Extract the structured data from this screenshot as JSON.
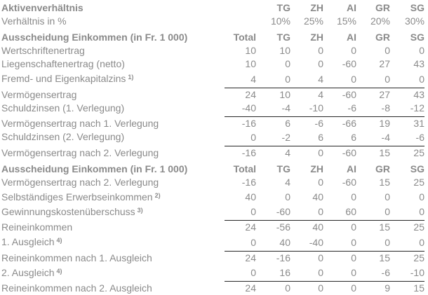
{
  "colors": {
    "text": "#8a8a8a",
    "rule_line": "#262626",
    "background": "#ffffff"
  },
  "table": {
    "column_keys": [
      "total",
      "tg",
      "zh",
      "ai",
      "gr",
      "sg"
    ],
    "rows": [
      {
        "label": "Aktivenverhältnis",
        "bold": true,
        "values": [
          "",
          "TG",
          "ZH",
          "AI",
          "GR",
          "SG"
        ]
      },
      {
        "label": "Verhältnis in %",
        "values": [
          "",
          "10%",
          "25%",
          "15%",
          "20%",
          "30%"
        ]
      },
      {
        "label": "Ausscheidung Einkommen (in Fr. 1 000)",
        "bold": true,
        "section": true,
        "values": [
          "Total",
          "TG",
          "ZH",
          "AI",
          "GR",
          "SG"
        ]
      },
      {
        "label": "Wertschriftenertrag",
        "values": [
          "10",
          "10",
          "0",
          "0",
          "0",
          "0"
        ]
      },
      {
        "label": "Liegenschaftenertrag (netto)",
        "values": [
          "10",
          "0",
          "0",
          "-60",
          "27",
          "43"
        ]
      },
      {
        "label": "Fremd- und Eigenkapitalzins",
        "sup": "1)",
        "rule": true,
        "values": [
          "4",
          "0",
          "4",
          "0",
          "0",
          "0"
        ]
      },
      {
        "label": "Vermögensertrag",
        "values": [
          "24",
          "10",
          "4",
          "-60",
          "27",
          "43"
        ]
      },
      {
        "label": "Schuldzinsen (1. Verlegung)",
        "rule": true,
        "values": [
          "-40",
          "-4",
          "-10",
          "-6",
          "-8",
          "-12"
        ]
      },
      {
        "label": "Vermögensertrag nach 1. Verlegung",
        "values": [
          "-16",
          "6",
          "-6",
          "-66",
          "19",
          "31"
        ]
      },
      {
        "label": "Schuldzinsen (2. Verlegung)",
        "rule": true,
        "values": [
          "0",
          "-2",
          "6",
          "6",
          "-4",
          "-6"
        ]
      },
      {
        "label": "Vermögensertrag nach 2. Verlegung",
        "values": [
          "-16",
          "4",
          "0",
          "-60",
          "15",
          "25"
        ]
      },
      {
        "label": "Ausscheidung Einkommen (in Fr. 1 000)",
        "bold": true,
        "section": true,
        "values": [
          "Total",
          "TG",
          "ZH",
          "AI",
          "GR",
          "SG"
        ]
      },
      {
        "label": "Vermögensertrag nach 2. Verlegung",
        "values": [
          "-16",
          "4",
          "0",
          "-60",
          "15",
          "25"
        ]
      },
      {
        "label": "Selbständiges Erwerbseinkommen",
        "sup": "2)",
        "values": [
          "40",
          "0",
          "40",
          "0",
          "0",
          "0"
        ]
      },
      {
        "label": "Gewinnungskostenüberschuss",
        "sup": "3)",
        "rule": true,
        "values": [
          "0",
          "-60",
          "0",
          "60",
          "0",
          "0"
        ]
      },
      {
        "label": "Reineinkommen",
        "values": [
          "24",
          "-56",
          "40",
          "0",
          "15",
          "25"
        ]
      },
      {
        "label": "1. Ausgleich",
        "sup": "4)",
        "rule": true,
        "values": [
          "0",
          "40",
          "-40",
          "0",
          "0",
          "0"
        ]
      },
      {
        "label": "Reineinkommen nach 1. Ausgleich",
        "values": [
          "24",
          "-16",
          "0",
          "0",
          "15",
          "25"
        ]
      },
      {
        "label": "2. Ausgleich",
        "sup": "4)",
        "rule": true,
        "values": [
          "0",
          "16",
          "0",
          "0",
          "-6",
          "-10"
        ]
      },
      {
        "label": "Reineinkommen nach 2. Ausgleich",
        "values": [
          "24",
          "0",
          "0",
          "0",
          "9",
          "15"
        ]
      }
    ]
  }
}
